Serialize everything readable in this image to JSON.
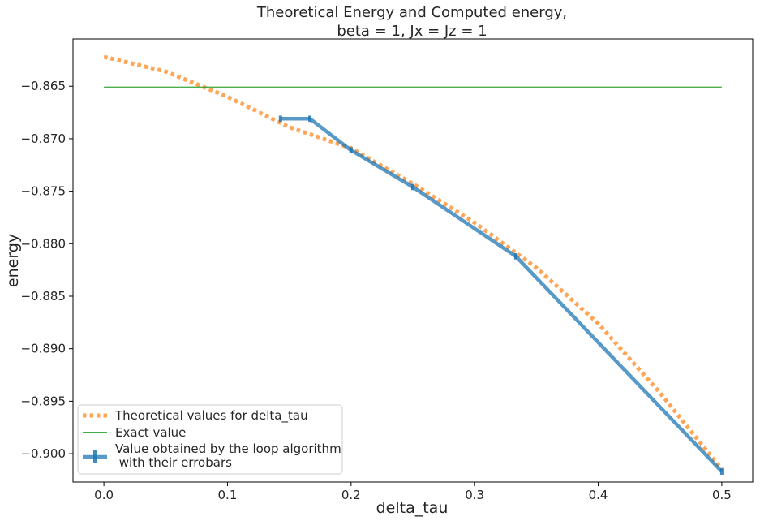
{
  "chart_data": {
    "type": "line",
    "title": "Theoretical Energy and Computed energy,",
    "subtitle": "beta = 1, Jx = Jz = 1",
    "xlabel": "delta_tau",
    "ylabel": "energy",
    "xlim": [
      -0.025,
      0.525
    ],
    "ylim": [
      -0.9027,
      -0.8605
    ],
    "x_ticks": [
      0.0,
      0.1,
      0.2,
      0.3,
      0.4,
      0.5
    ],
    "x_tick_labels": [
      "0.0",
      "0.1",
      "0.2",
      "0.3",
      "0.4",
      "0.5"
    ],
    "y_ticks": [
      -0.865,
      -0.87,
      -0.875,
      -0.88,
      -0.885,
      -0.89,
      -0.895,
      -0.9
    ],
    "y_tick_labels": [
      "−0.865",
      "−0.870",
      "−0.875",
      "−0.880",
      "−0.885",
      "−0.890",
      "−0.895",
      "−0.900"
    ],
    "grid": false,
    "legend_position": "lower-left",
    "series": [
      {
        "name": "Theoretical values for delta_tau",
        "style": "dotted",
        "color": "#ff7f0e",
        "x": [
          0.0,
          0.05,
          0.1,
          0.15,
          0.2,
          0.25,
          0.3,
          0.35,
          0.4,
          0.45,
          0.5
        ],
        "y": [
          -0.8622,
          -0.8636,
          -0.866,
          -0.8689,
          -0.8709,
          -0.8743,
          -0.878,
          -0.8823,
          -0.8876,
          -0.8942,
          -0.9015
        ]
      },
      {
        "name": "Exact value",
        "style": "solid",
        "color": "#2ca02c",
        "x": [
          0.0,
          0.5
        ],
        "y": [
          -0.8651,
          -0.8651
        ]
      },
      {
        "name": "Value obtained by the loop algorithm\n with their errobars",
        "style": "errorbar",
        "color": "#1f77b4",
        "x": [
          0.1429,
          0.1667,
          0.2,
          0.25,
          0.3333,
          0.5
        ],
        "y": [
          -0.8681,
          -0.8681,
          -0.8711,
          -0.8746,
          -0.8812,
          -0.9017
        ],
        "yerr": [
          0.0003,
          0.0003,
          0.0003,
          0.0003,
          0.0003,
          0.0003
        ]
      }
    ]
  }
}
